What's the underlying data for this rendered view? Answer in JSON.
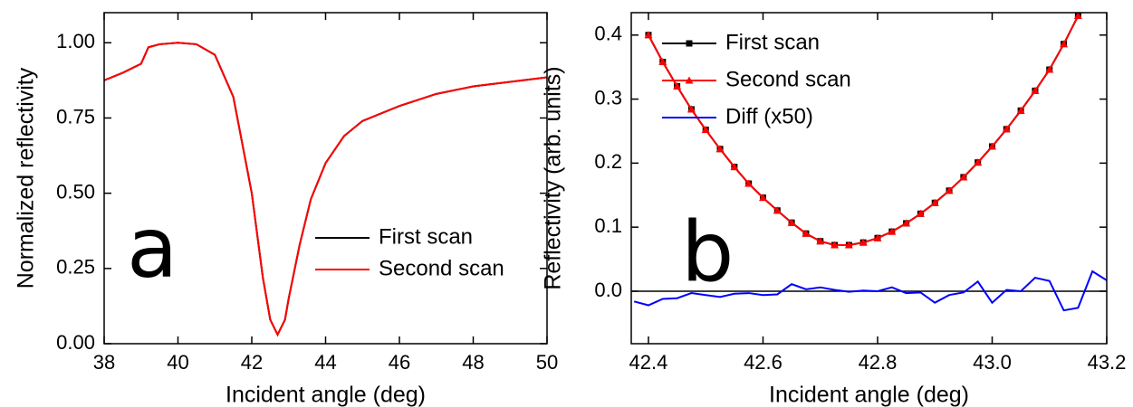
{
  "chart_data": [
    {
      "type": "line",
      "annotation": "a",
      "xlabel": "Incident angle (deg)",
      "ylabel": "Normalized reflectivity",
      "xlim": [
        38,
        50
      ],
      "xticks": [
        38,
        40,
        42,
        44,
        46,
        48,
        50
      ],
      "ylim": [
        0,
        1.1
      ],
      "yticks": [
        {
          "value": 0,
          "label": "0.00"
        },
        {
          "value": 0.25,
          "label": "0.25"
        },
        {
          "value": 0.5,
          "label": "0.50"
        },
        {
          "value": 0.75,
          "label": "0.75"
        },
        {
          "value": 1,
          "label": "1.00"
        }
      ],
      "legend": "center right",
      "x": [
        38,
        38.5,
        39,
        39.2,
        39.5,
        40,
        40.5,
        41,
        41.5,
        42,
        42.3,
        42.5,
        42.7,
        42.9,
        43,
        43.3,
        43.6,
        44,
        44.5,
        45,
        46,
        47,
        48,
        49,
        50
      ],
      "series": [
        {
          "name": "First scan",
          "color": "#000000",
          "values": [
            0.875,
            0.9,
            0.93,
            0.985,
            0.995,
            1.0,
            0.995,
            0.96,
            0.82,
            0.5,
            0.22,
            0.08,
            0.03,
            0.08,
            0.15,
            0.33,
            0.48,
            0.6,
            0.69,
            0.74,
            0.79,
            0.83,
            0.855,
            0.87,
            0.885
          ]
        },
        {
          "name": "Second scan",
          "color": "#ff0000",
          "values": [
            0.875,
            0.9,
            0.93,
            0.985,
            0.995,
            1.0,
            0.995,
            0.96,
            0.82,
            0.5,
            0.22,
            0.08,
            0.03,
            0.08,
            0.15,
            0.33,
            0.48,
            0.6,
            0.69,
            0.74,
            0.79,
            0.83,
            0.855,
            0.87,
            0.885
          ]
        }
      ]
    },
    {
      "type": "line",
      "annotation": "b",
      "xlabel": "Incident angle (deg)",
      "ylabel": "Reflectivity (arb. units)",
      "xlim": [
        42.37,
        43.2
      ],
      "xticks": [
        42.4,
        42.6,
        42.8,
        {
          "value": 43,
          "label": "43.0"
        },
        43.2
      ],
      "ylim": [
        -0.082,
        0.435
      ],
      "yticks": [
        {
          "value": 0,
          "label": "0.0"
        },
        0.1,
        0.2,
        0.3,
        0.4
      ],
      "hline": 0,
      "legend": "upper center",
      "series": [
        {
          "name": "First scan",
          "color": "#000000",
          "marker": "square",
          "x": [
            42.4,
            42.425,
            42.45,
            42.475,
            42.5,
            42.525,
            42.55,
            42.575,
            42.6,
            42.625,
            42.65,
            42.675,
            42.7,
            42.725,
            42.75,
            42.775,
            42.8,
            42.825,
            42.85,
            42.875,
            42.9,
            42.925,
            42.95,
            42.975,
            43.0,
            43.025,
            43.05,
            43.075,
            43.1,
            43.125,
            43.15
          ],
          "values": [
            0.4,
            0.358,
            0.32,
            0.284,
            0.252,
            0.222,
            0.194,
            0.168,
            0.146,
            0.126,
            0.107,
            0.09,
            0.078,
            0.072,
            0.072,
            0.076,
            0.083,
            0.093,
            0.106,
            0.121,
            0.138,
            0.157,
            0.178,
            0.201,
            0.226,
            0.253,
            0.282,
            0.313,
            0.346,
            0.386,
            0.43
          ]
        },
        {
          "name": "Second scan",
          "color": "#ff0000",
          "marker": "triangle",
          "x": [
            42.4,
            42.425,
            42.45,
            42.475,
            42.5,
            42.525,
            42.55,
            42.575,
            42.6,
            42.625,
            42.65,
            42.675,
            42.7,
            42.725,
            42.75,
            42.775,
            42.8,
            42.825,
            42.85,
            42.875,
            42.9,
            42.925,
            42.95,
            42.975,
            43.0,
            43.025,
            43.05,
            43.075,
            43.1,
            43.125,
            43.15
          ],
          "values": [
            0.4,
            0.358,
            0.32,
            0.284,
            0.252,
            0.222,
            0.194,
            0.168,
            0.146,
            0.126,
            0.107,
            0.09,
            0.078,
            0.072,
            0.072,
            0.076,
            0.083,
            0.093,
            0.106,
            0.121,
            0.138,
            0.157,
            0.178,
            0.201,
            0.226,
            0.253,
            0.282,
            0.313,
            0.346,
            0.386,
            0.43
          ]
        },
        {
          "name": "Diff (x50)",
          "color": "#0000ff",
          "x": [
            42.375,
            42.4,
            42.425,
            42.45,
            42.475,
            42.5,
            42.525,
            42.55,
            42.575,
            42.6,
            42.625,
            42.65,
            42.675,
            42.7,
            42.725,
            42.75,
            42.775,
            42.8,
            42.825,
            42.85,
            42.875,
            42.9,
            42.925,
            42.95,
            42.975,
            43.0,
            43.025,
            43.05,
            43.075,
            43.1,
            43.125,
            43.15,
            43.175,
            43.2
          ],
          "values": [
            -0.016,
            -0.022,
            -0.012,
            -0.011,
            -0.003,
            -0.006,
            -0.009,
            -0.004,
            -0.003,
            -0.006,
            -0.005,
            0.011,
            0.003,
            0.006,
            0.002,
            -0.001,
            0.001,
            0.0,
            0.006,
            -0.003,
            -0.002,
            -0.018,
            -0.006,
            -0.002,
            0.015,
            -0.018,
            0.002,
            0.0,
            0.021,
            0.016,
            -0.03,
            -0.026,
            0.031,
            0.017
          ]
        }
      ]
    }
  ]
}
